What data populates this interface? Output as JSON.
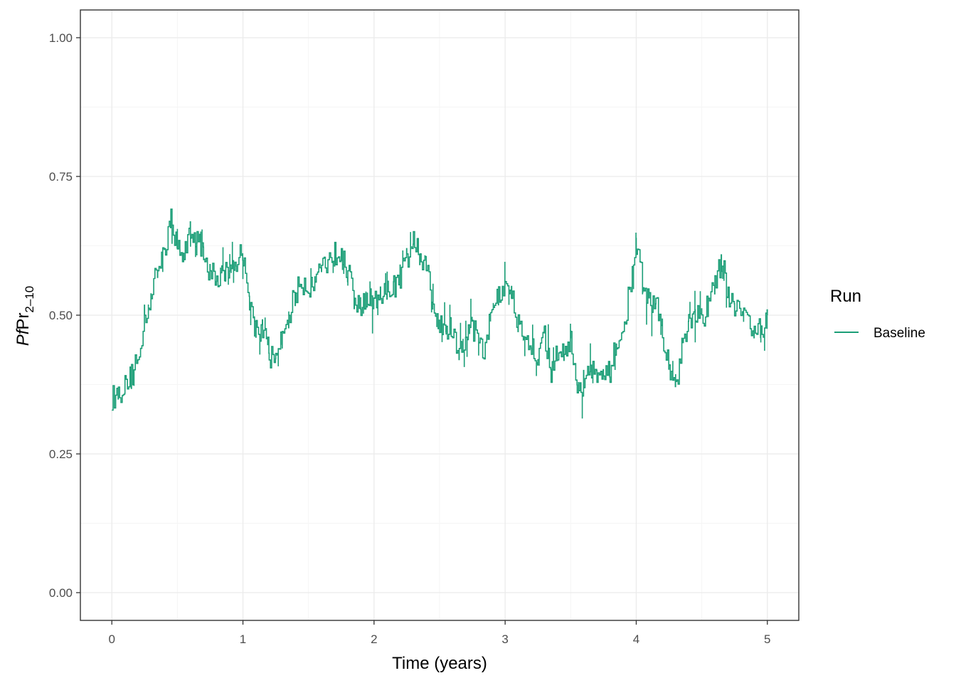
{
  "colors": {
    "series": "#1b9e77",
    "grid_major": "#ebebeb",
    "grid_minor": "#f5f5f5",
    "panel_border": "#333333"
  },
  "chart_data": {
    "type": "line",
    "xlabel": "Time (years)",
    "ylabel": {
      "italic": "Pf",
      "main": "Pr",
      "subscript": "2–10"
    },
    "xlim": [
      -0.24,
      5.24
    ],
    "ylim": [
      -0.05,
      1.05
    ],
    "x_ticks": [
      0,
      1,
      2,
      3,
      4,
      5
    ],
    "x_tick_labels": [
      "0",
      "1",
      "2",
      "3",
      "4",
      "5"
    ],
    "y_ticks": [
      0,
      0.25,
      0.5,
      0.75,
      1.0
    ],
    "y_tick_labels": [
      "0.00",
      "0.25",
      "0.50",
      "0.75",
      "1.00"
    ],
    "grid": true,
    "legend": {
      "title": "Run",
      "position": "right",
      "entries": [
        "Baseline"
      ]
    },
    "series": [
      {
        "name": "Baseline",
        "color": "#1b9e77",
        "x": [
          0,
          0.05,
          0.1,
          0.15,
          0.2,
          0.25,
          0.3,
          0.35,
          0.4,
          0.45,
          0.5,
          0.55,
          0.6,
          0.65,
          0.7,
          0.75,
          0.8,
          0.85,
          0.9,
          0.95,
          1.0,
          1.05,
          1.1,
          1.15,
          1.2,
          1.25,
          1.3,
          1.35,
          1.4,
          1.45,
          1.5,
          1.55,
          1.6,
          1.65,
          1.7,
          1.75,
          1.8,
          1.85,
          1.9,
          1.95,
          2.0,
          2.05,
          2.1,
          2.15,
          2.2,
          2.25,
          2.3,
          2.35,
          2.4,
          2.45,
          2.5,
          2.55,
          2.6,
          2.65,
          2.7,
          2.75,
          2.8,
          2.85,
          2.9,
          2.95,
          3.0,
          3.05,
          3.1,
          3.15,
          3.2,
          3.25,
          3.3,
          3.35,
          3.4,
          3.45,
          3.5,
          3.55,
          3.6,
          3.65,
          3.7,
          3.75,
          3.8,
          3.85,
          3.9,
          3.95,
          4.0,
          4.05,
          4.1,
          4.15,
          4.2,
          4.25,
          4.3,
          4.35,
          4.4,
          4.45,
          4.5,
          4.55,
          4.6,
          4.65,
          4.7,
          4.75,
          4.8,
          4.85,
          4.9,
          4.95,
          5.0
        ],
        "y": [
          0.35,
          0.36,
          0.37,
          0.39,
          0.42,
          0.5,
          0.54,
          0.58,
          0.62,
          0.67,
          0.63,
          0.6,
          0.66,
          0.64,
          0.6,
          0.58,
          0.56,
          0.57,
          0.58,
          0.6,
          0.61,
          0.52,
          0.48,
          0.47,
          0.43,
          0.41,
          0.46,
          0.5,
          0.54,
          0.56,
          0.55,
          0.57,
          0.59,
          0.6,
          0.61,
          0.62,
          0.58,
          0.52,
          0.51,
          0.53,
          0.52,
          0.53,
          0.54,
          0.55,
          0.57,
          0.6,
          0.64,
          0.6,
          0.58,
          0.52,
          0.49,
          0.48,
          0.47,
          0.44,
          0.45,
          0.48,
          0.45,
          0.44,
          0.51,
          0.53,
          0.55,
          0.53,
          0.49,
          0.46,
          0.44,
          0.42,
          0.47,
          0.4,
          0.43,
          0.44,
          0.46,
          0.36,
          0.38,
          0.41,
          0.4,
          0.38,
          0.4,
          0.45,
          0.46,
          0.55,
          0.62,
          0.56,
          0.53,
          0.52,
          0.47,
          0.4,
          0.37,
          0.44,
          0.48,
          0.5,
          0.49,
          0.52,
          0.55,
          0.6,
          0.54,
          0.52,
          0.51,
          0.49,
          0.48,
          0.47,
          0.5
        ]
      }
    ]
  }
}
